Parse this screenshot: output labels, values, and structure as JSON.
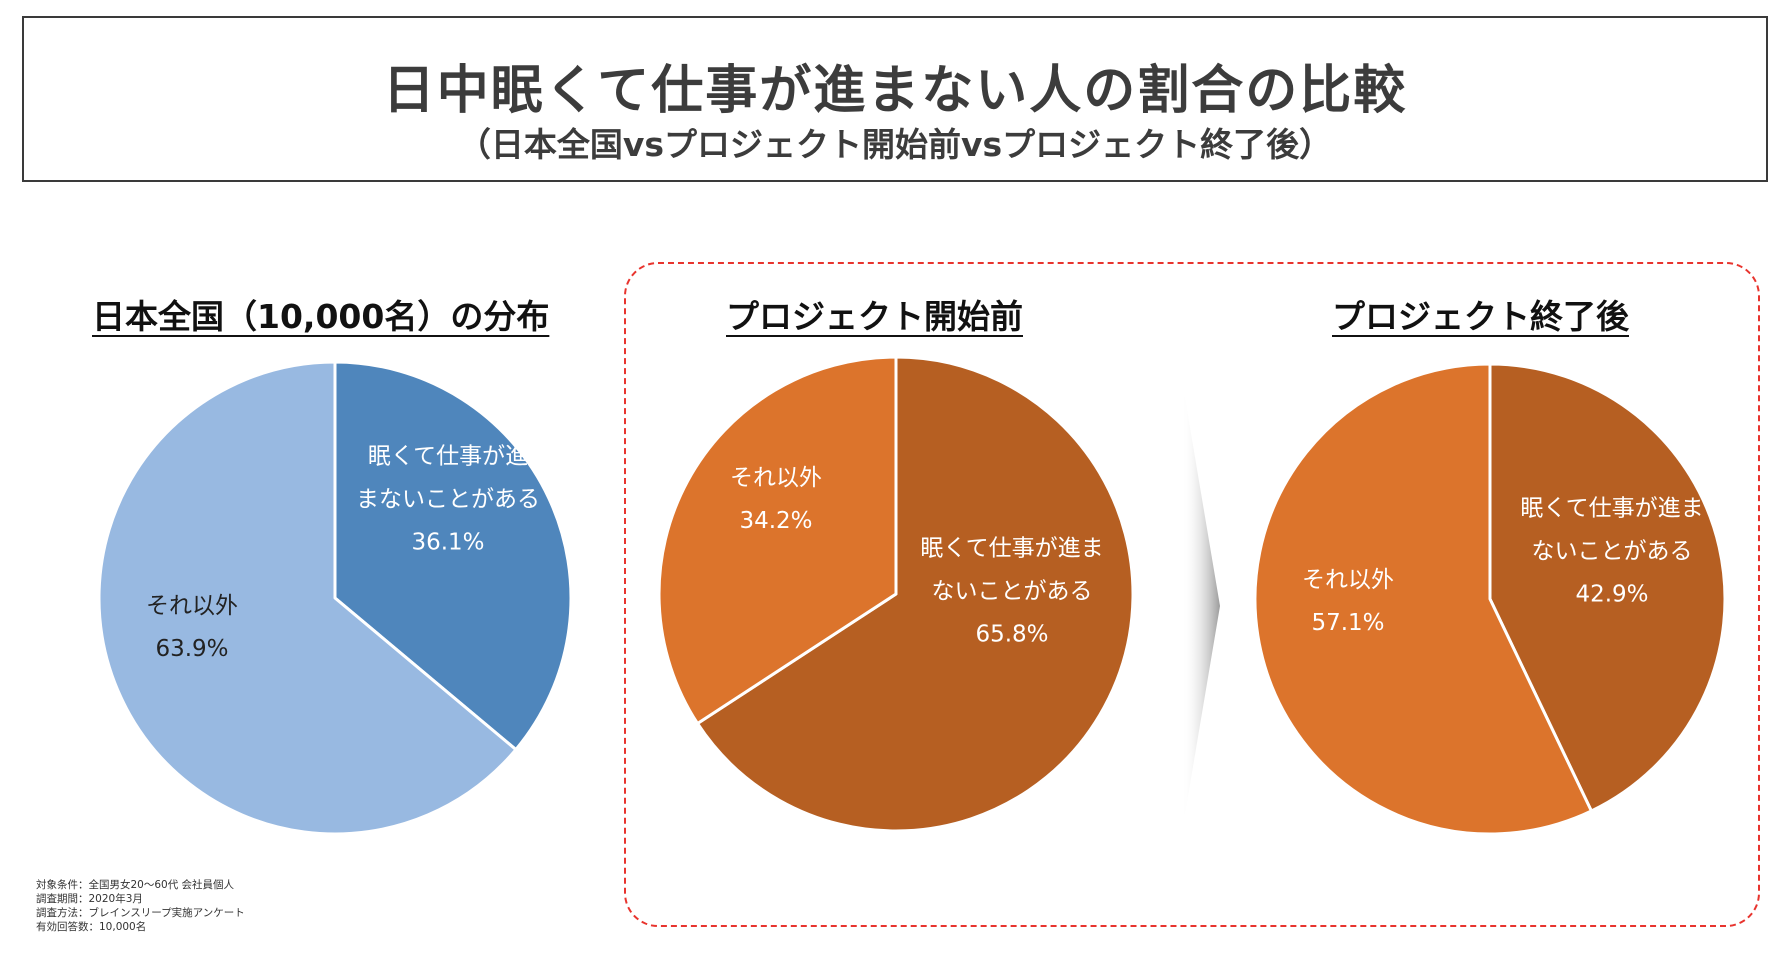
{
  "header": {
    "title": "日中眠くて仕事が進まない人の割合の比較",
    "subtitle": "（日本全国vsプロジェクト開始前vsプロジェクト終了後）"
  },
  "colors": {
    "national_main": "#4f86bc",
    "national_other": "#98b9e1",
    "project_main": "#b65f22",
    "project_other": "#dc742c",
    "dashed_border": "#e8342e"
  },
  "chart_data": [
    {
      "type": "pie",
      "title": "日本全国（10,000名）の分布",
      "slices": [
        {
          "label_lines": [
            "眠くて仕事が進",
            "まないことがある"
          ],
          "value": 36.1,
          "value_label": "36.1%"
        },
        {
          "label_lines": [
            "それ以外"
          ],
          "value": 63.9,
          "value_label": "63.9%"
        }
      ]
    },
    {
      "type": "pie",
      "title": "プロジェクト開始前",
      "slices": [
        {
          "label_lines": [
            "眠くて仕事が進ま",
            "ないことがある"
          ],
          "value": 65.8,
          "value_label": "65.8%"
        },
        {
          "label_lines": [
            "それ以外"
          ],
          "value": 34.2,
          "value_label": "34.2%"
        }
      ]
    },
    {
      "type": "pie",
      "title": "プロジェクト終了後",
      "slices": [
        {
          "label_lines": [
            "眠くて仕事が進ま",
            "ないことがある"
          ],
          "value": 42.9,
          "value_label": "42.9%"
        },
        {
          "label_lines": [
            "それ以外"
          ],
          "value": 57.1,
          "value_label": "57.1%"
        }
      ]
    }
  ],
  "footnote": {
    "lines": [
      "対象条件：全国男女20～60代 会社員個人",
      "調査期間：2020年3月",
      "調査方法：ブレインスリープ実施アンケート",
      "有効回答数：10,000名"
    ]
  }
}
